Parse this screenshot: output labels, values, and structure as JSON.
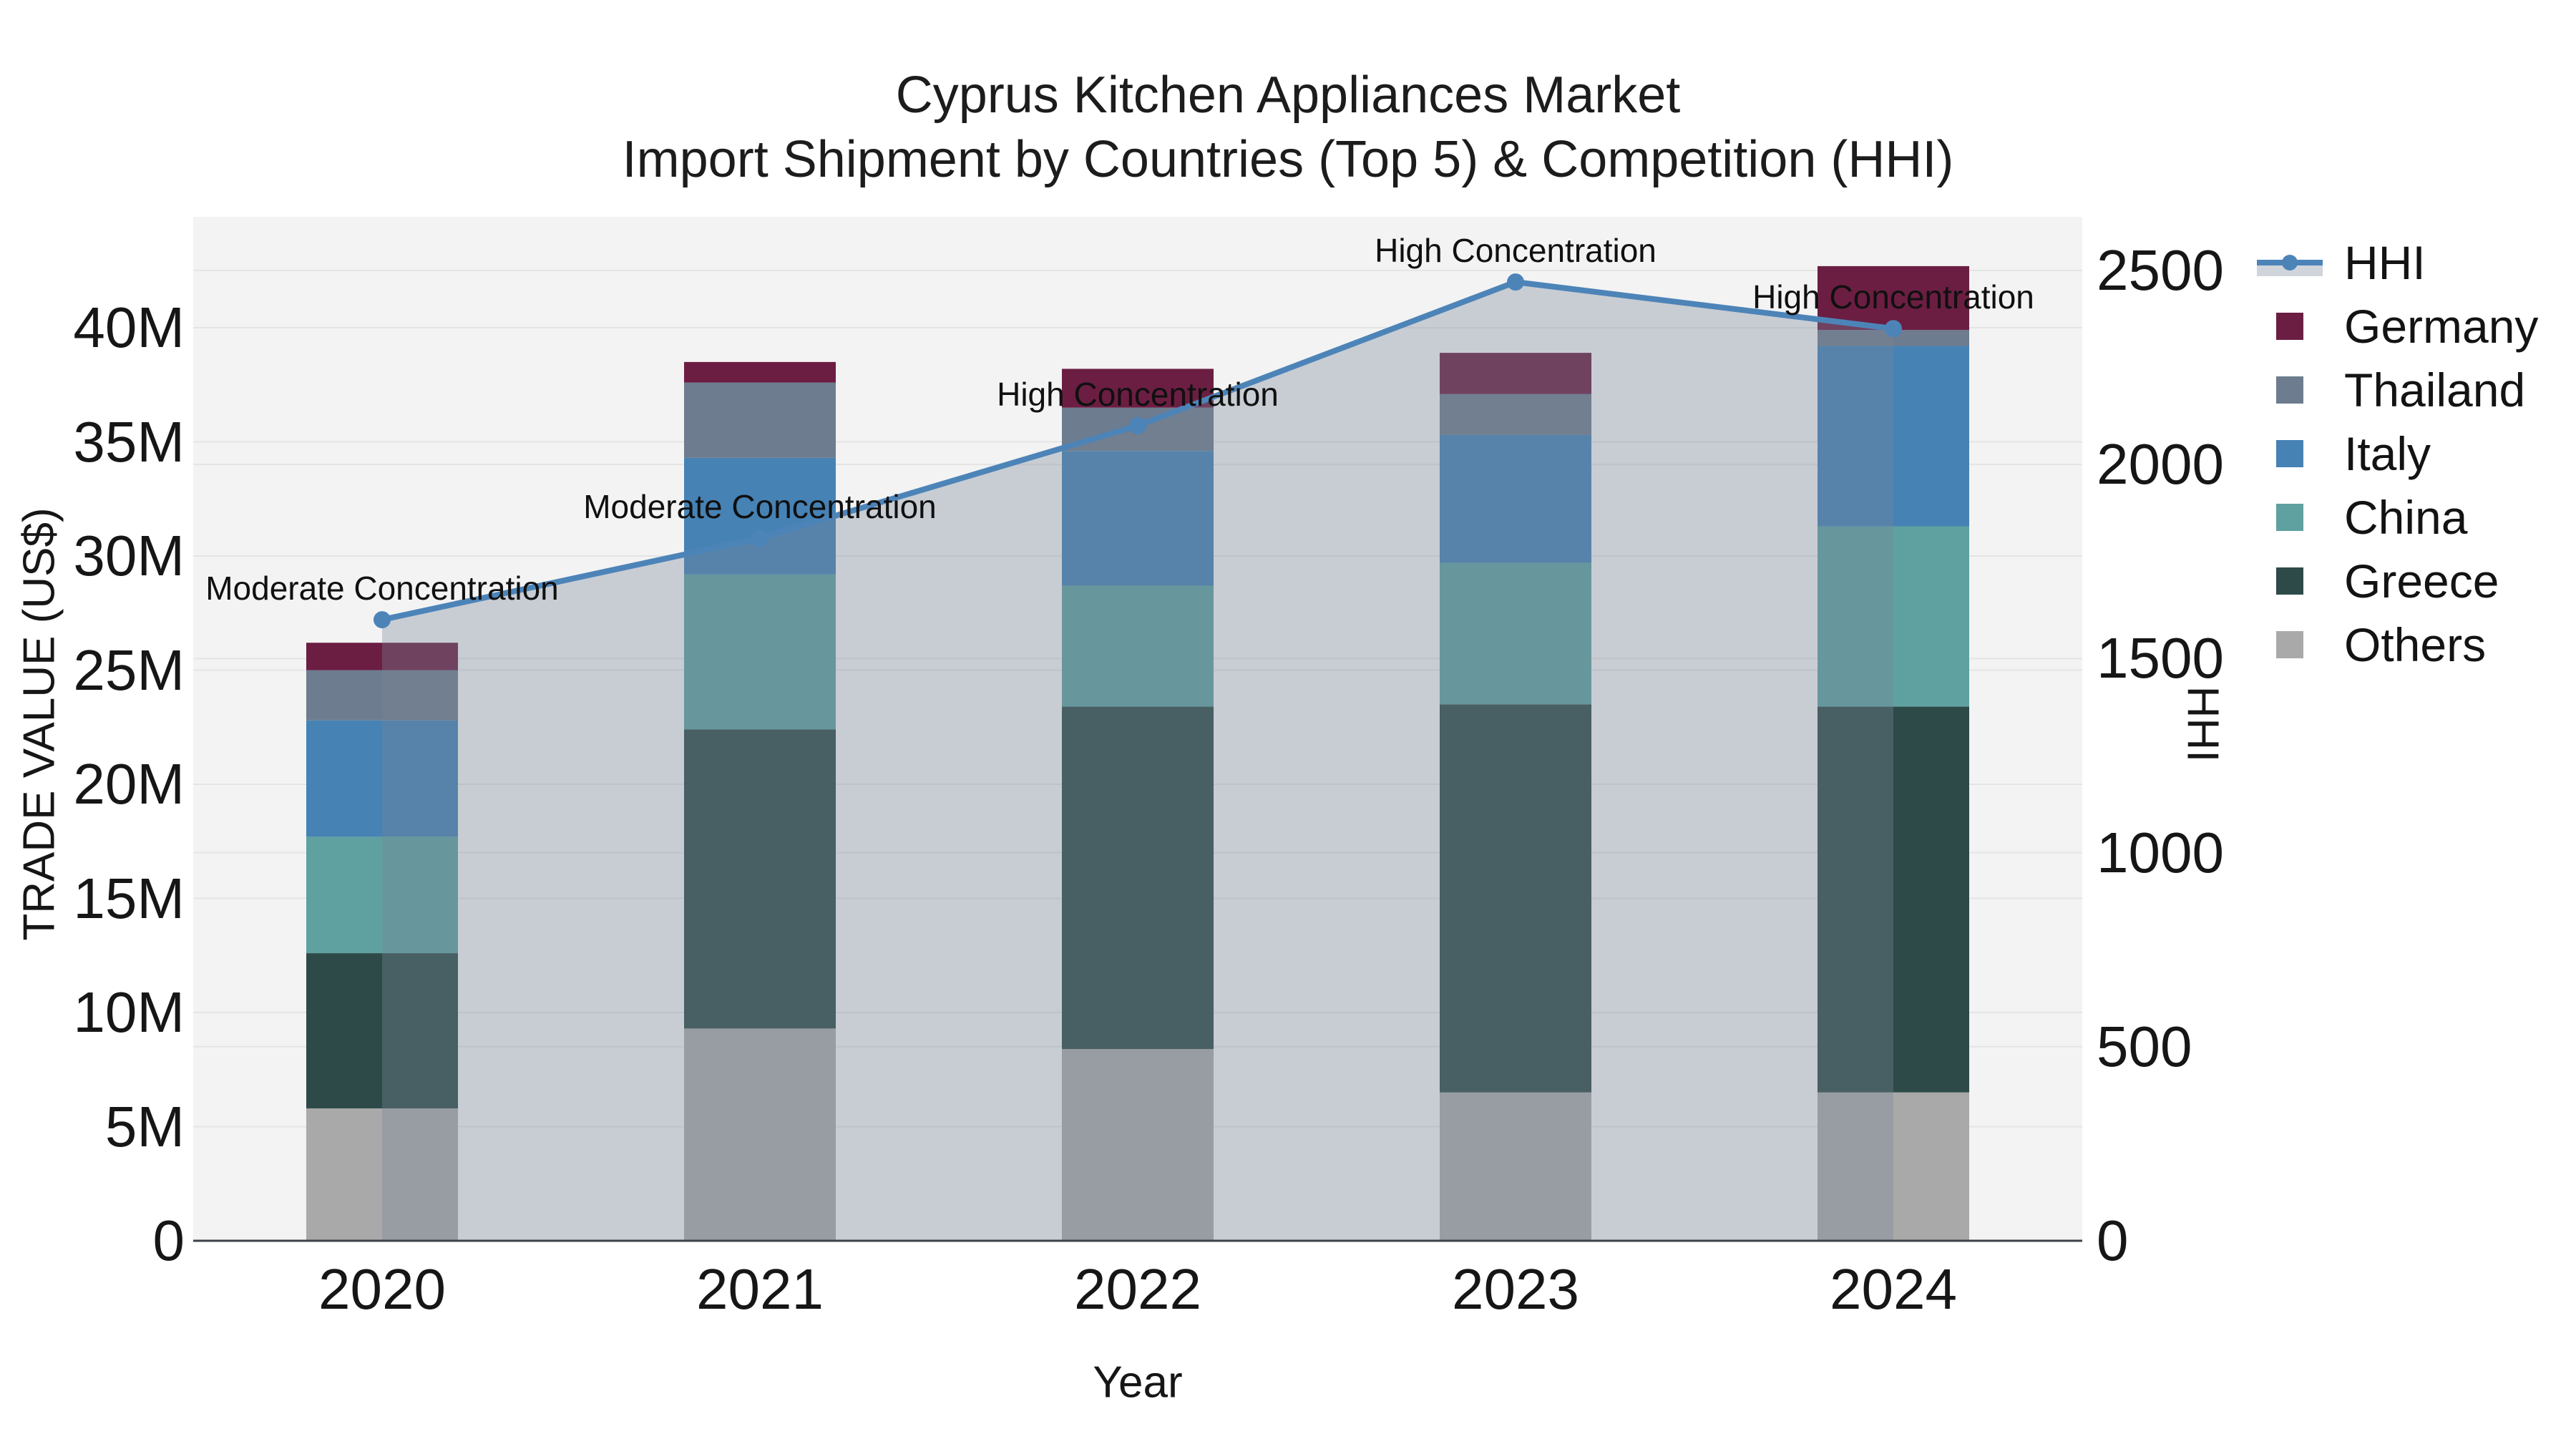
{
  "title": {
    "line1": "Cyprus Kitchen Appliances Market",
    "line2": "Import Shipment by Countries (Top 5) & Competition (HHI)"
  },
  "axes": {
    "y1_title": "TRADE VALUE (US$)",
    "y2_title": "HHI",
    "x_title": "Year"
  },
  "colors": {
    "Germany": "#6b1e42",
    "Thailand": "#6d7c8e",
    "Italy": "#4682b4",
    "China": "#5fa0a0",
    "Greece": "#2e4a48",
    "Others": "#a9a9a9",
    "hhi_line": "#4d84b8",
    "area_fill": "rgba(119,136,153,0.35)",
    "plot_bg": "#f3f3f3",
    "grid": "#e4e4e4",
    "axis_line": "#3c4248",
    "text": "#111111"
  },
  "legend": {
    "items": [
      {
        "label": "HHI",
        "type": "line"
      },
      {
        "label": "Germany",
        "type": "swatch"
      },
      {
        "label": "Thailand",
        "type": "swatch"
      },
      {
        "label": "Italy",
        "type": "swatch"
      },
      {
        "label": "China",
        "type": "swatch"
      },
      {
        "label": "Greece",
        "type": "swatch"
      },
      {
        "label": "Others",
        "type": "swatch"
      }
    ]
  },
  "chart_data": {
    "type": "combo: stacked vertical bars (left axis) + line with markers (right axis)",
    "title": "Cyprus Kitchen Appliances Market — Import Shipment by Countries (Top 5) & Competition (HHI)",
    "categories": [
      "2020",
      "2021",
      "2022",
      "2023",
      "2024"
    ],
    "bar_unit": "million US$",
    "stack_order_bottom_to_top": [
      "Others",
      "Greece",
      "China",
      "Italy",
      "Thailand",
      "Germany"
    ],
    "series": [
      {
        "name": "Others",
        "values": [
          5.8,
          9.3,
          8.4,
          6.5,
          6.5
        ]
      },
      {
        "name": "Greece",
        "values": [
          6.8,
          13.1,
          15.0,
          17.0,
          16.9
        ]
      },
      {
        "name": "China",
        "values": [
          5.1,
          6.8,
          5.3,
          6.2,
          7.9
        ]
      },
      {
        "name": "Italy",
        "values": [
          5.1,
          5.1,
          5.9,
          5.6,
          7.9
        ]
      },
      {
        "name": "Thailand",
        "values": [
          2.2,
          3.3,
          1.9,
          1.8,
          0.7
        ]
      },
      {
        "name": "Germany",
        "values": [
          1.2,
          0.9,
          1.7,
          1.8,
          2.8
        ]
      }
    ],
    "bar_totals": [
      26.2,
      38.5,
      38.2,
      38.9,
      42.7
    ],
    "line_series": {
      "name": "HHI",
      "axis": "right",
      "values": [
        1600,
        1810,
        2100,
        2470,
        2350
      ],
      "area_fill": true
    },
    "annotations": [
      {
        "category": "2020",
        "text": "Moderate Concentration"
      },
      {
        "category": "2021",
        "text": "Moderate Concentration"
      },
      {
        "category": "2022",
        "text": "High Concentration"
      },
      {
        "category": "2023",
        "text": "High Concentration"
      },
      {
        "category": "2024",
        "text": "High Concentration"
      }
    ],
    "y1": {
      "label": "TRADE VALUE (US$)",
      "min": 0,
      "max": 44.86,
      "ticks": [
        0,
        5,
        10,
        15,
        20,
        25,
        30,
        35,
        40
      ],
      "tick_labels": [
        "0",
        "5M",
        "10M",
        "15M",
        "20M",
        "25M",
        "30M",
        "35M",
        "40M"
      ],
      "grid": true
    },
    "y2": {
      "label": "HHI",
      "min": 0,
      "max": 2638,
      "ticks": [
        0,
        500,
        1000,
        1500,
        2000,
        2500
      ],
      "tick_labels": [
        "0",
        "500",
        "1000",
        "1500",
        "2000",
        "2500"
      ],
      "grid": true
    },
    "x": {
      "label": "Year"
    },
    "legend_position": "right"
  }
}
